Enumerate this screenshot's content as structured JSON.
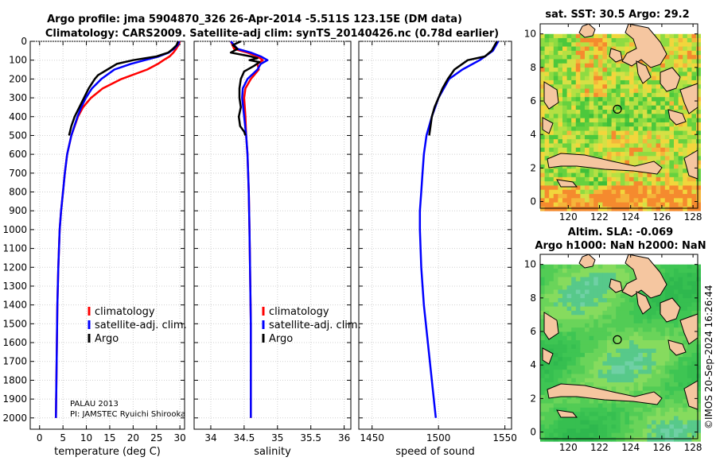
{
  "header": {
    "title_line1": "Argo profile: jma 5904870_326 26-Apr-2014 -5.511S 123.15E (DM data)",
    "title_line2": "Climatology: CARS2009. Satellite-adj clim: synTS_20140426.nc (0.78d earlier)"
  },
  "colors": {
    "climatology": "#ff0000",
    "satellite_adj": "#0000ff",
    "argo": "#000000"
  },
  "legend": {
    "climatology": "climatology",
    "satellite_adj": "satellite-adj. clim.",
    "argo": "Argo"
  },
  "annotation": {
    "line1": "PALAU 2013",
    "line2": "PI: JAMSTEC Ryuichi Shirooka"
  },
  "stamp": "©IMOS 20-Sep-2024 16:26:44",
  "chart_data": [
    {
      "type": "line",
      "id": "temperature",
      "xlabel": "temperature (deg C)",
      "ylabel": "",
      "xlim": [
        -2,
        31
      ],
      "ylim": [
        2060,
        0
      ],
      "x_ticks": [
        "0",
        "5",
        "10",
        "15",
        "20",
        "25",
        "30"
      ],
      "x_tick_values": [
        0,
        5,
        10,
        15,
        20,
        25,
        30
      ],
      "y_ticks": [
        "0",
        "100",
        "200",
        "300",
        "400",
        "500",
        "600",
        "700",
        "800",
        "900",
        "1000",
        "1100",
        "1200",
        "1300",
        "1400",
        "1500",
        "1600",
        "1700",
        "1800",
        "1900",
        "2000"
      ],
      "y_tick_values": [
        0,
        100,
        200,
        300,
        400,
        500,
        600,
        700,
        800,
        900,
        1000,
        1100,
        1200,
        1300,
        1400,
        1500,
        1600,
        1700,
        1800,
        1900,
        2000
      ],
      "series": [
        {
          "name": "climatology",
          "depth": [
            0,
            20,
            40,
            60,
            80,
            100,
            120,
            150,
            200,
            250,
            300,
            350,
            400,
            500,
            600,
            700,
            800,
            900,
            1000,
            1200,
            1400,
            1600,
            1800,
            2000
          ],
          "values": [
            30.0,
            29.7,
            29.2,
            28.6,
            27.8,
            26.5,
            25.3,
            23.0,
            17.5,
            13.5,
            11.0,
            9.3,
            8.2,
            6.8,
            5.9,
            5.4,
            5.0,
            4.6,
            4.3,
            4.0,
            3.8,
            3.7,
            3.6,
            3.5
          ]
        },
        {
          "name": "satellite-adj. clim.",
          "depth": [
            0,
            20,
            40,
            60,
            80,
            100,
            120,
            150,
            200,
            250,
            300,
            350,
            400,
            500,
            600,
            700,
            800,
            900,
            1000,
            1200,
            1400,
            1600,
            1800,
            2000
          ],
          "values": [
            29.9,
            29.5,
            28.7,
            27.6,
            25.5,
            22.5,
            19.5,
            16.0,
            13.2,
            11.2,
            9.9,
            8.9,
            8.1,
            6.8,
            5.9,
            5.4,
            5.0,
            4.6,
            4.3,
            4.0,
            3.8,
            3.7,
            3.6,
            3.5
          ]
        },
        {
          "name": "Argo",
          "depth": [
            0,
            20,
            40,
            60,
            80,
            100,
            120,
            150,
            180,
            200,
            250,
            300,
            350,
            400,
            450,
            500
          ],
          "values": [
            29.6,
            29.3,
            28.5,
            27.5,
            25.0,
            20.0,
            16.5,
            14.5,
            12.5,
            11.8,
            10.5,
            9.5,
            8.5,
            7.5,
            6.8,
            6.3
          ]
        }
      ]
    },
    {
      "type": "line",
      "id": "salinity",
      "xlabel": "salinity",
      "xlim": [
        33.75,
        36.1
      ],
      "ylim": [
        2060,
        0
      ],
      "x_ticks": [
        "34",
        "34.5",
        "35",
        "35.5",
        "36"
      ],
      "x_tick_values": [
        34,
        34.5,
        35,
        35.5,
        36
      ],
      "series": [
        {
          "name": "climatology",
          "depth": [
            0,
            40,
            60,
            80,
            100,
            120,
            150,
            200,
            250,
            300,
            400,
            500,
            600,
            800,
            1000,
            1500,
            2000
          ],
          "values": [
            34.3,
            34.35,
            34.55,
            34.7,
            34.78,
            34.7,
            34.72,
            34.6,
            34.52,
            34.5,
            34.52,
            34.53,
            34.55,
            34.57,
            34.58,
            34.6,
            34.6
          ]
        },
        {
          "name": "satellite-adj. clim.",
          "depth": [
            0,
            40,
            60,
            80,
            100,
            120,
            150,
            200,
            250,
            300,
            400,
            500,
            600,
            800,
            1000,
            1500,
            2000
          ],
          "values": [
            34.3,
            34.4,
            34.6,
            34.75,
            34.85,
            34.75,
            34.7,
            34.55,
            34.48,
            34.47,
            34.5,
            34.53,
            34.55,
            34.57,
            34.58,
            34.6,
            34.6
          ]
        },
        {
          "name": "Argo",
          "depth": [
            0,
            20,
            40,
            60,
            80,
            90,
            100,
            110,
            130,
            160,
            200,
            250,
            300,
            350,
            400,
            450,
            480,
            500
          ],
          "values": [
            34.45,
            34.33,
            34.4,
            34.3,
            34.6,
            34.7,
            34.58,
            34.73,
            34.65,
            34.5,
            34.45,
            34.43,
            34.43,
            34.45,
            34.42,
            34.44,
            34.5,
            34.52
          ]
        }
      ]
    },
    {
      "type": "line",
      "id": "sound_speed",
      "xlabel": "speed of sound",
      "xlim": [
        1440,
        1555
      ],
      "ylim": [
        2060,
        0
      ],
      "x_ticks": [
        "1450",
        "1500",
        "1550"
      ],
      "x_tick_values": [
        1450,
        1500,
        1550
      ],
      "series": [
        {
          "name": "satellite-adj. clim.",
          "depth": [
            0,
            50,
            100,
            150,
            200,
            300,
            400,
            500,
            600,
            700,
            800,
            900,
            1000,
            1200,
            1400,
            1600,
            1800,
            2000
          ],
          "values": [
            1545,
            1541,
            1531,
            1518,
            1508,
            1500,
            1495,
            1491,
            1489,
            1488,
            1487,
            1486,
            1486,
            1487,
            1489,
            1492,
            1495,
            1498
          ]
        },
        {
          "name": "Argo",
          "depth": [
            0,
            50,
            80,
            100,
            150,
            200,
            250,
            300,
            350,
            400,
            450,
            500
          ],
          "values": [
            1544,
            1540,
            1535,
            1522,
            1512,
            1507,
            1503,
            1500,
            1497,
            1495,
            1494,
            1493
          ]
        }
      ]
    },
    {
      "type": "heatmap",
      "id": "sst_map",
      "title": "sat. SST: 30.5 Argo: 29.2",
      "xlim": [
        118.2,
        128.3
      ],
      "ylim": [
        -0.4,
        10.6
      ],
      "x_ticks": [
        "120",
        "122",
        "124",
        "126",
        "128"
      ],
      "x_tick_values": [
        120,
        122,
        124,
        126,
        128
      ],
      "y_ticks": [
        "0",
        "2",
        "4",
        "6",
        "8",
        "10"
      ],
      "y_tick_values": [
        0,
        2,
        4,
        6,
        8,
        10
      ],
      "argo_position": [
        123.15,
        5.51
      ]
    },
    {
      "type": "heatmap",
      "id": "altimetry_map",
      "title_line1": "Altim. SLA: -0.069",
      "title_line2": "Argo h1000: NaN h2000: NaN",
      "xlim": [
        118.2,
        128.3
      ],
      "ylim": [
        -0.4,
        10.6
      ],
      "x_ticks": [
        "120",
        "122",
        "124",
        "126",
        "128"
      ],
      "x_tick_values": [
        120,
        122,
        124,
        126,
        128
      ],
      "y_ticks": [
        "0",
        "2",
        "4",
        "6",
        "8",
        "10"
      ],
      "y_tick_values": [
        0,
        2,
        4,
        6,
        8,
        10
      ],
      "argo_position": [
        123.15,
        5.51
      ]
    }
  ]
}
